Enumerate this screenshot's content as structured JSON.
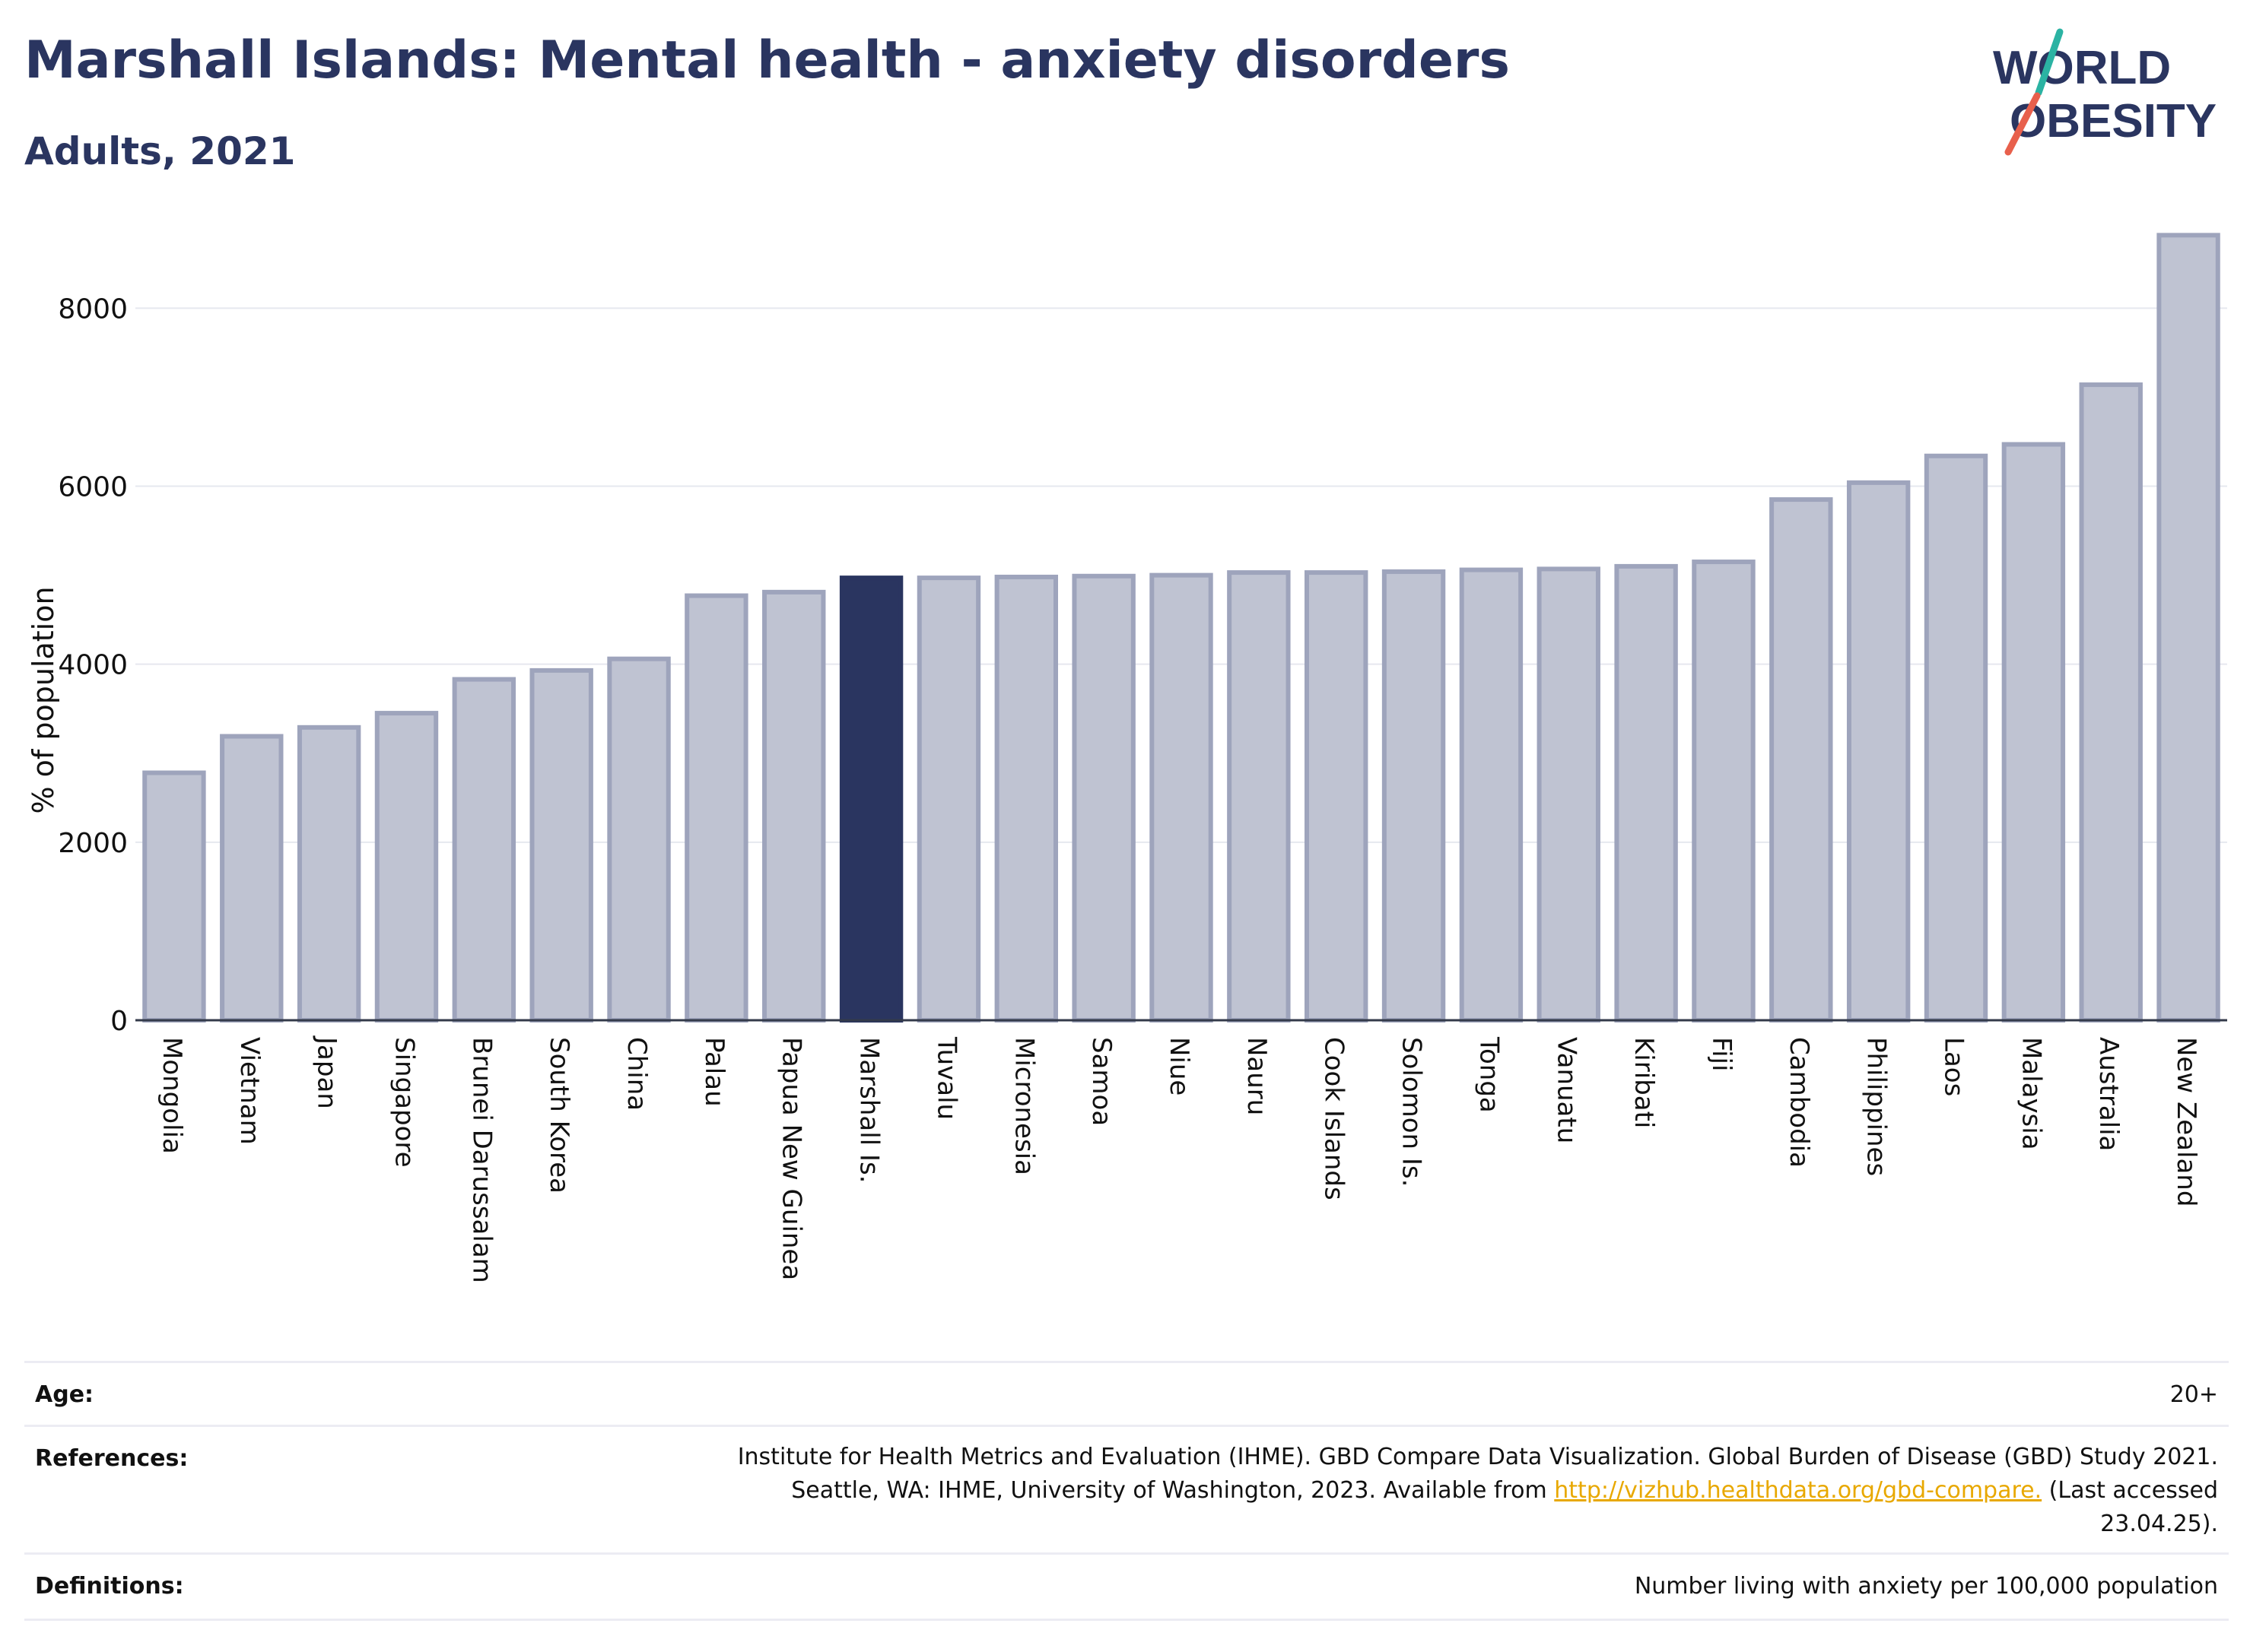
{
  "title": "Marshall Islands: Mental health - anxiety disorders",
  "subtitle": "Adults, 2021",
  "logo": {
    "line1": "WORLD",
    "line2": "OBESITY",
    "colors": {
      "text": "#2a3560",
      "slash_top": "#2bb3a3",
      "slash_bottom": "#e8604c"
    }
  },
  "colors": {
    "highlight": "#2a3560",
    "bar_fill": "#bfc3d2",
    "bar_stroke": "#9ea4bc",
    "grid": "#e6e8ef"
  },
  "chart_data": {
    "type": "bar",
    "ylabel": "% of population",
    "ylim": [
      0,
      8900
    ],
    "yticks": [
      0,
      2000,
      4000,
      6000,
      8000
    ],
    "grid": true,
    "highlight": "Marshall Is.",
    "categories": [
      "Mongolia",
      "Vietnam",
      "Japan",
      "Singapore",
      "Brunei Darussalam",
      "South Korea",
      "China",
      "Palau",
      "Papua New Guinea",
      "Marshall Is.",
      "Tuvalu",
      "Micronesia",
      "Samoa",
      "Niue",
      "Nauru",
      "Cook Islands",
      "Solomon Is.",
      "Tonga",
      "Vanuatu",
      "Kiribati",
      "Fiji",
      "Cambodia",
      "Philippines",
      "Laos",
      "Malaysia",
      "Australia",
      "New Zealand"
    ],
    "values": [
      2780,
      3190,
      3290,
      3450,
      3830,
      3930,
      4060,
      4770,
      4810,
      4970,
      4970,
      4980,
      4990,
      5000,
      5030,
      5030,
      5040,
      5060,
      5070,
      5100,
      5150,
      5850,
      6040,
      6340,
      6470,
      7140,
      8820
    ]
  },
  "meta": {
    "age_label": "Age:",
    "age_value": "20+",
    "references_label": "References:",
    "references_line1": "Institute for Health Metrics and Evaluation (IHME). GBD Compare Data Visualization. Global Burden of Disease (GBD) Study 2021.",
    "references_line2_pre": "Seattle, WA: IHME, University of Washington, 2023. Available from ",
    "references_link": "http://vizhub.healthdata.org/gbd-compare.",
    "references_line2_post": " (Last accessed",
    "references_line3": "23.04.25).",
    "definitions_label": "Definitions:",
    "definitions_value": "Number living with anxiety per 100,000 population"
  }
}
